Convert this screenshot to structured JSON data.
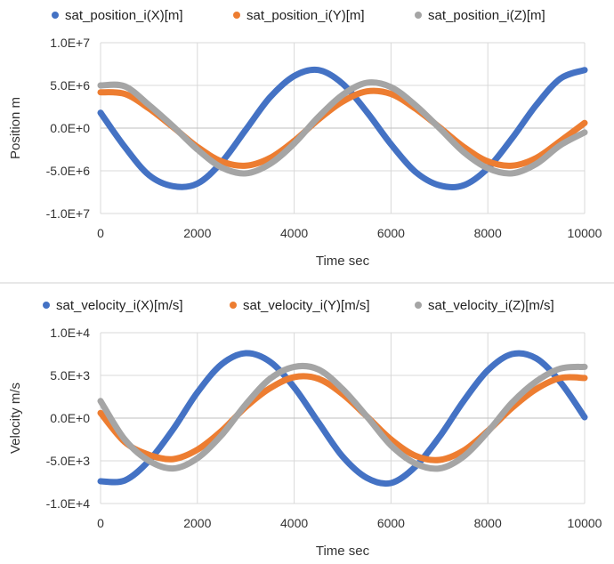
{
  "chart_data": [
    {
      "type": "scatter",
      "title": "",
      "xlabel": "Time sec",
      "ylabel": "Position m",
      "xlim": [
        0,
        10000
      ],
      "ylim": [
        -10000000,
        10000000
      ],
      "x_ticks": [
        0,
        2000,
        4000,
        6000,
        8000,
        10000
      ],
      "y_ticks": [
        10000000,
        5000000,
        0,
        -5000000,
        -10000000
      ],
      "x_tick_labels": [
        "0",
        "2000",
        "4000",
        "6000",
        "8000",
        "10000"
      ],
      "y_tick_labels": [
        "1.0E+7",
        "5.0E+6",
        "0.0E+0",
        "-5.0E+6",
        "-1.0E+7"
      ],
      "grid": true,
      "legend_position": "top",
      "x": [
        0,
        500,
        1000,
        1500,
        2000,
        2500,
        3000,
        3500,
        4000,
        4500,
        5000,
        5500,
        6000,
        6500,
        7000,
        7500,
        8000,
        8500,
        9000,
        9500,
        10000
      ],
      "series": [
        {
          "name": "sat_position_i(X)[m]",
          "color": "#4472c4",
          "values": [
            1800000,
            -2200000,
            -5500000,
            -6800000,
            -6500000,
            -4000000,
            -200000,
            3600000,
            6100000,
            6800000,
            5200000,
            1900000,
            -1900000,
            -5100000,
            -6700000,
            -6700000,
            -4700000,
            -1200000,
            2700000,
            5800000,
            6800000
          ]
        },
        {
          "name": "sat_position_i(Y)[m]",
          "color": "#ed7d31",
          "values": [
            4200000,
            4000000,
            2300000,
            100000,
            -2200000,
            -3900000,
            -4400000,
            -3500000,
            -1500000,
            1000000,
            3100000,
            4300000,
            4000000,
            2300000,
            100000,
            -2200000,
            -3900000,
            -4400000,
            -3500000,
            -1500000,
            600000
          ]
        },
        {
          "name": "sat_position_i(Z)[m]",
          "color": "#a5a5a5",
          "values": [
            5000000,
            4900000,
            2700000,
            200000,
            -2500000,
            -4600000,
            -5300000,
            -4200000,
            -1800000,
            1300000,
            3900000,
            5300000,
            4800000,
            2700000,
            0,
            -2800000,
            -4700000,
            -5300000,
            -4200000,
            -2000000,
            -500000
          ]
        }
      ]
    },
    {
      "type": "scatter",
      "title": "",
      "xlabel": "Time sec",
      "ylabel": "Velocity  m/s",
      "xlim": [
        0,
        10000
      ],
      "ylim": [
        -10000,
        10000
      ],
      "x_ticks": [
        0,
        2000,
        4000,
        6000,
        8000,
        10000
      ],
      "y_ticks": [
        10000,
        5000,
        0,
        -5000,
        -10000
      ],
      "x_tick_labels": [
        "0",
        "2000",
        "4000",
        "6000",
        "8000",
        "10000"
      ],
      "y_tick_labels": [
        "1.0E+4",
        "5.0E+3",
        "0.0E+0",
        "-5.0E+3",
        "-1.0E+4"
      ],
      "grid": true,
      "legend_position": "top",
      "x": [
        0,
        500,
        1000,
        1500,
        2000,
        2500,
        3000,
        3500,
        4000,
        4500,
        5000,
        5500,
        6000,
        6500,
        7000,
        7500,
        8000,
        8500,
        9000,
        9500,
        10000
      ],
      "series": [
        {
          "name": "sat_velocity_i(X)[m/s]",
          "color": "#4472c4",
          "values": [
            -7400,
            -7300,
            -5000,
            -1300,
            3000,
            6300,
            7600,
            6600,
            3600,
            -500,
            -4500,
            -7000,
            -7600,
            -5700,
            -2200,
            2000,
            5600,
            7500,
            7000,
            4200,
            100
          ]
        },
        {
          "name": "sat_velocity_i(Y)[m/s]",
          "color": "#ed7d31",
          "values": [
            600,
            -2800,
            -4300,
            -4800,
            -3700,
            -1500,
            1300,
            3500,
            4800,
            4600,
            2800,
            200,
            -2500,
            -4400,
            -4900,
            -3800,
            -1500,
            1200,
            3400,
            4700,
            4700
          ]
        },
        {
          "name": "sat_velocity_i(Z)[m/s]",
          "color": "#a5a5a5",
          "values": [
            2000,
            -2500,
            -5000,
            -5900,
            -4700,
            -2000,
            1600,
            4600,
            6000,
            5700,
            3400,
            200,
            -3200,
            -5300,
            -5900,
            -4500,
            -1600,
            1800,
            4300,
            5800,
            6000
          ]
        }
      ]
    }
  ]
}
